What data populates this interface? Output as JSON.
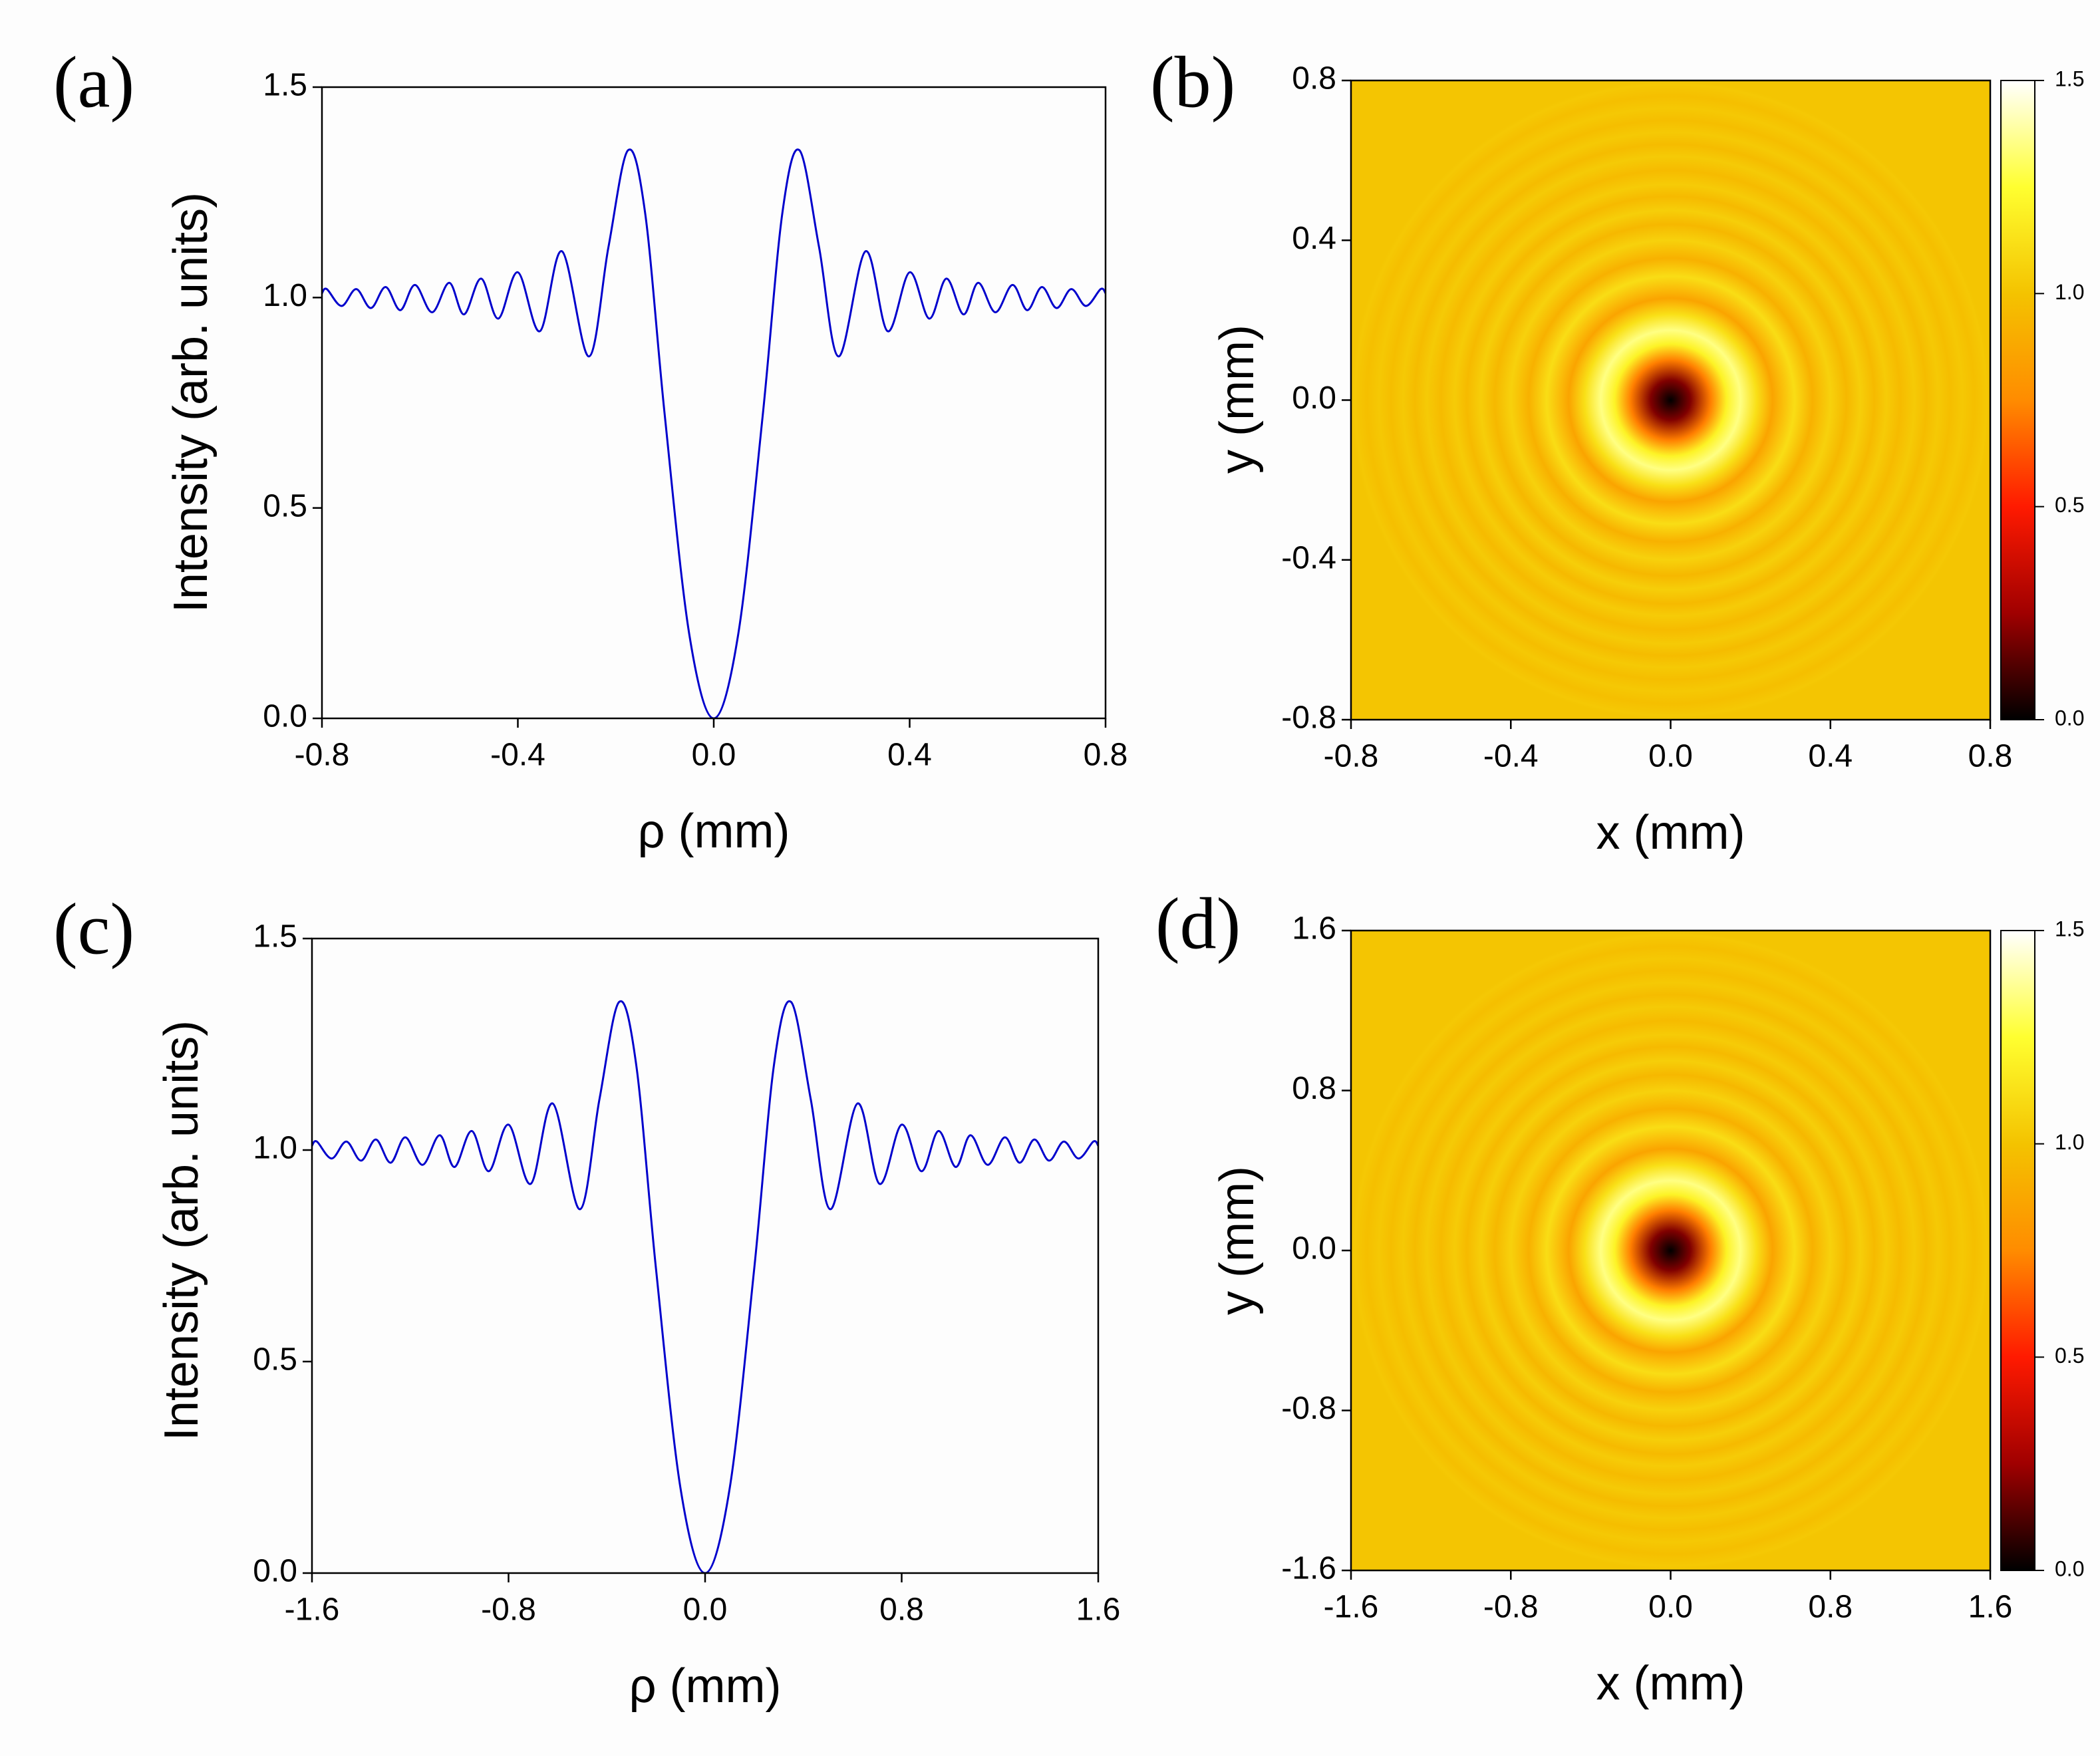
{
  "chart_data": [
    {
      "type": "line",
      "panel_label": "(a)",
      "x_label": "ρ (mm)",
      "y_label": "Intensity (arb. units)",
      "xlim": [
        -0.8,
        0.8
      ],
      "ylim": [
        0,
        1.5
      ],
      "xticks": [
        -0.8,
        -0.4,
        {
          "value": 0,
          "label": "0.0"
        },
        0.4,
        0.8
      ],
      "yticks": [
        {
          "value": 0,
          "label": "0.0"
        },
        0.5,
        {
          "value": 1,
          "label": "1.0"
        },
        1.5
      ],
      "x": [
        -0.8,
        -0.79,
        -0.76,
        -0.73,
        -0.7,
        -0.67,
        -0.64,
        -0.61,
        -0.575,
        -0.54,
        -0.51,
        -0.475,
        -0.44,
        -0.4,
        -0.355,
        -0.31,
        -0.255,
        -0.215,
        -0.175,
        -0.14,
        -0.1,
        -0.05,
        0,
        0.05,
        0.1,
        0.14,
        0.175,
        0.215,
        0.255,
        0.31,
        0.355,
        0.4,
        0.44,
        0.475,
        0.51,
        0.54,
        0.575,
        0.61,
        0.64,
        0.67,
        0.7,
        0.73,
        0.76,
        0.79,
        0.8
      ],
      "series": [
        {
          "color": "#0000cc",
          "values": [
            1.01,
            1.02,
            0.98,
            1.02,
            0.975,
            1.025,
            0.97,
            1.03,
            0.965,
            1.035,
            0.96,
            1.045,
            0.95,
            1.06,
            0.92,
            1.11,
            0.86,
            1.12,
            1.35,
            1.2,
            0.72,
            0.2,
            0,
            0.2,
            0.72,
            1.2,
            1.35,
            1.12,
            0.86,
            1.11,
            0.92,
            1.06,
            0.95,
            1.045,
            0.96,
            1.035,
            0.965,
            1.03,
            0.97,
            1.025,
            0.975,
            1.02,
            0.98,
            1.02,
            1.01
          ]
        }
      ]
    },
    {
      "type": "heatmap",
      "panel_label": "(b)",
      "x_label": "x (mm)",
      "y_label": "y (mm)",
      "xlim": [
        -0.8,
        0.8
      ],
      "ylim": [
        -0.8,
        0.8
      ],
      "xticks": [
        -0.8,
        -0.4,
        {
          "value": 0,
          "label": "0.0"
        },
        0.4,
        0.8
      ],
      "yticks": [
        -0.8,
        -0.4,
        {
          "value": 0,
          "label": "0.0"
        },
        0.4,
        0.8
      ],
      "r": [
        0,
        0.05,
        0.1,
        0.14,
        0.175,
        0.215,
        0.255,
        0.31,
        0.355,
        0.4,
        0.44,
        0.475,
        0.51,
        0.54,
        0.575,
        0.61,
        0.64,
        0.67,
        0.7,
        0.73,
        0.76,
        0.79,
        0.8
      ],
      "values": [
        0,
        0.2,
        0.72,
        1.2,
        1.35,
        1.12,
        0.86,
        1.11,
        0.92,
        1.06,
        0.95,
        1.045,
        0.96,
        1.035,
        0.965,
        1.03,
        0.97,
        1.025,
        0.975,
        1.02,
        0.98,
        1.02,
        1.01
      ],
      "clim": [
        0,
        1.5
      ],
      "cticks": [
        {
          "value": 0,
          "label": "0.0"
        },
        0.5,
        {
          "value": 1,
          "label": "1.0"
        },
        1.5
      ],
      "colormap": [
        "#000000",
        "#a00000",
        "#ff1a00",
        "#ff8c00",
        "#f4c300",
        "#ffff30",
        "#ffffff"
      ]
    },
    {
      "type": "line",
      "panel_label": "(c)",
      "x_label": "ρ (mm)",
      "y_label": "Intensity (arb. units)",
      "xlim": [
        -1.6,
        1.6
      ],
      "ylim": [
        0,
        1.5
      ],
      "xticks": [
        -1.6,
        -0.8,
        {
          "value": 0,
          "label": "0.0"
        },
        0.8,
        1.6
      ],
      "yticks": [
        {
          "value": 0,
          "label": "0.0"
        },
        0.5,
        {
          "value": 1,
          "label": "1.0"
        },
        1.5
      ],
      "x": [
        -1.6,
        -1.58,
        -1.52,
        -1.46,
        -1.4,
        -1.34,
        -1.28,
        -1.22,
        -1.15,
        -1.08,
        -1.02,
        -0.95,
        -0.88,
        -0.8,
        -0.71,
        -0.62,
        -0.51,
        -0.43,
        -0.35,
        -0.28,
        -0.2,
        -0.1,
        0,
        0.1,
        0.2,
        0.28,
        0.35,
        0.43,
        0.51,
        0.62,
        0.71,
        0.8,
        0.88,
        0.95,
        1.02,
        1.08,
        1.15,
        1.22,
        1.28,
        1.34,
        1.4,
        1.46,
        1.52,
        1.58,
        1.6
      ],
      "series": [
        {
          "color": "#0000cc",
          "values": [
            1.01,
            1.02,
            0.98,
            1.02,
            0.975,
            1.025,
            0.97,
            1.03,
            0.965,
            1.035,
            0.96,
            1.045,
            0.95,
            1.06,
            0.92,
            1.11,
            0.86,
            1.12,
            1.35,
            1.2,
            0.72,
            0.2,
            0,
            0.2,
            0.72,
            1.2,
            1.35,
            1.12,
            0.86,
            1.11,
            0.92,
            1.06,
            0.95,
            1.045,
            0.96,
            1.035,
            0.965,
            1.03,
            0.97,
            1.025,
            0.975,
            1.02,
            0.98,
            1.02,
            1.01
          ]
        }
      ]
    },
    {
      "type": "heatmap",
      "panel_label": "(d)",
      "x_label": "x (mm)",
      "y_label": "y (mm)",
      "xlim": [
        -1.6,
        1.6
      ],
      "ylim": [
        -1.6,
        1.6
      ],
      "xticks": [
        -1.6,
        -0.8,
        {
          "value": 0,
          "label": "0.0"
        },
        0.8,
        1.6
      ],
      "yticks": [
        -1.6,
        -0.8,
        {
          "value": 0,
          "label": "0.0"
        },
        0.8,
        1.6
      ],
      "r": [
        0,
        0.1,
        0.2,
        0.28,
        0.35,
        0.43,
        0.51,
        0.62,
        0.71,
        0.8,
        0.88,
        0.95,
        1.02,
        1.08,
        1.15,
        1.22,
        1.28,
        1.34,
        1.4,
        1.46,
        1.52,
        1.58,
        1.6
      ],
      "values": [
        0,
        0.2,
        0.72,
        1.2,
        1.35,
        1.12,
        0.86,
        1.11,
        0.92,
        1.06,
        0.95,
        1.045,
        0.96,
        1.035,
        0.965,
        1.03,
        0.97,
        1.025,
        0.975,
        1.02,
        0.98,
        1.02,
        1.01
      ],
      "clim": [
        0,
        1.5
      ],
      "cticks": [
        {
          "value": 0,
          "label": "0.0"
        },
        0.5,
        {
          "value": 1,
          "label": "1.0"
        },
        1.5
      ],
      "colormap": [
        "#000000",
        "#a00000",
        "#ff1a00",
        "#ff8c00",
        "#f4c300",
        "#ffff30",
        "#ffffff"
      ]
    }
  ]
}
